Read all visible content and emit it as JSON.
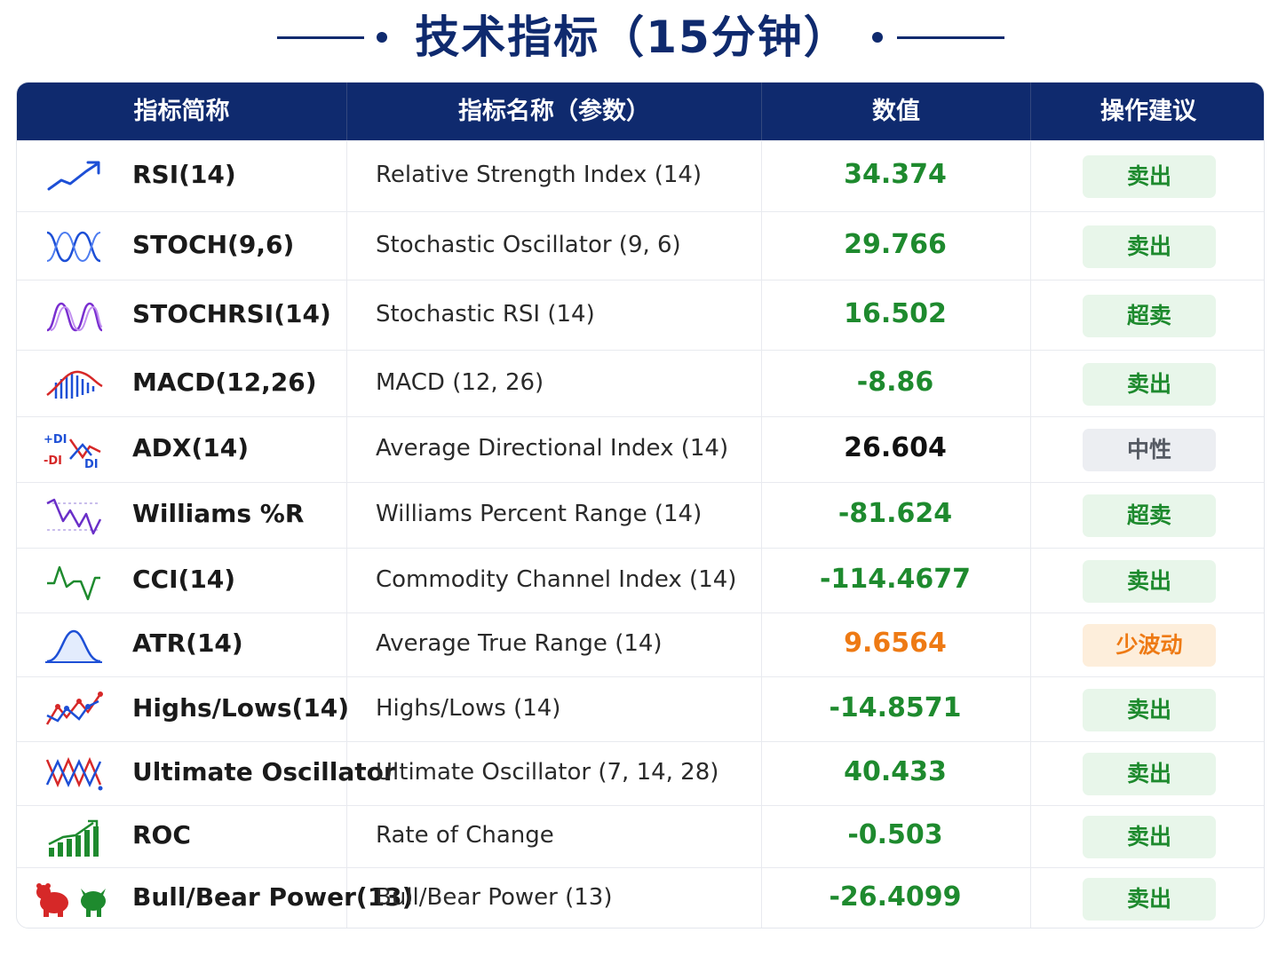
{
  "title": "技术指标（15分钟）",
  "headers": [
    "指标简称",
    "指标名称（参数）",
    "数值",
    "操作建议"
  ],
  "rows": [
    {
      "abbr": "RSI(14)",
      "name": "Relative Strength Index (14)",
      "value": "34.374",
      "action": "卖出",
      "tone": "green",
      "icon": "rsi-trend-icon"
    },
    {
      "abbr": "STOCH(9,6)",
      "name": "Stochastic Oscillator (9, 6)",
      "value": "29.766",
      "action": "卖出",
      "tone": "green",
      "icon": "stoch-waves-icon"
    },
    {
      "abbr": "STOCHRSI(14)",
      "name": "Stochastic RSI (14)",
      "value": "16.502",
      "action": "超卖",
      "tone": "green",
      "icon": "stochrsi-waves-icon"
    },
    {
      "abbr": "MACD(12,26)",
      "name": "MACD (12, 26)",
      "value": "-8.86",
      "action": "卖出",
      "tone": "green",
      "icon": "macd-histogram-icon"
    },
    {
      "abbr": "ADX(14)",
      "name": "Average Directional Index (14)",
      "value": "26.604",
      "action": "中性",
      "tone": "gray",
      "icon": "adx-di-icon"
    },
    {
      "abbr": "Williams %R",
      "name": "Williams Percent Range (14)",
      "value": "-81.624",
      "action": "超卖",
      "tone": "green",
      "icon": "williams-r-icon"
    },
    {
      "abbr": "CCI(14)",
      "name": "Commodity Channel Index (14)",
      "value": "-114.4677",
      "action": "卖出",
      "tone": "green",
      "icon": "cci-icon"
    },
    {
      "abbr": "ATR(14)",
      "name": "Average True Range (14)",
      "value": "9.6564",
      "action": "少波动",
      "tone": "orange",
      "icon": "atr-bell-curve-icon"
    },
    {
      "abbr": "Highs/Lows(14)",
      "name": "Highs/Lows (14)",
      "value": "-14.8571",
      "action": "卖出",
      "tone": "green",
      "icon": "highs-lows-icon"
    },
    {
      "abbr": "Ultimate Oscillator",
      "name": "Ultimate Oscillator (7, 14, 28)",
      "value": "40.433",
      "action": "卖出",
      "tone": "green",
      "icon": "ultimate-oscillator-icon"
    },
    {
      "abbr": "ROC",
      "name": "Rate of Change",
      "value": "-0.503",
      "action": "卖出",
      "tone": "green",
      "icon": "roc-bars-icon"
    },
    {
      "abbr": "Bull/Bear Power(13)",
      "name": "Bull/Bear Power (13)",
      "value": "-26.4099",
      "action": "卖出",
      "tone": "green",
      "icon": "bull-bear-icon"
    }
  ],
  "adx_icon_labels": [
    "+DI",
    "-DI",
    "DI"
  ],
  "colors": {
    "navy": "#0f2a6e",
    "green": "#1e8a2e",
    "orange": "#ee7a14",
    "gray_badge": "#eceef2"
  }
}
